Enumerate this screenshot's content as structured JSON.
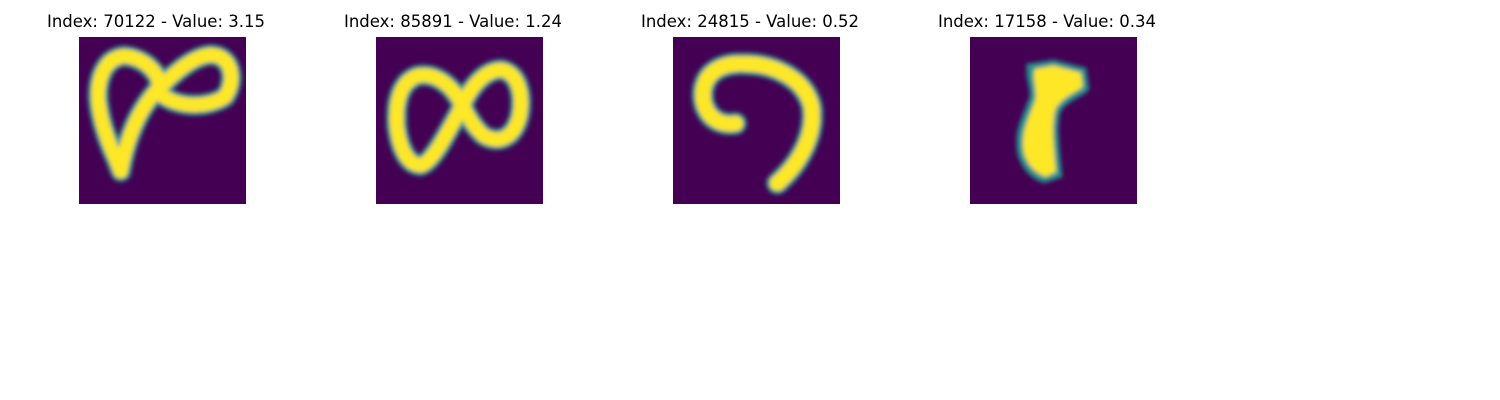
{
  "colors": {
    "background": "#440154",
    "edge": "#21918c",
    "mid": "#5ec962",
    "fill": "#fde725"
  },
  "panels": [
    {
      "title": "Index: 70122 - Value: 3.15",
      "index": "70122",
      "value": "3.15",
      "glyph": "glyph-8-loop-icon"
    },
    {
      "title": "Index: 85891 - Value: 1.24",
      "index": "85891",
      "value": "1.24",
      "glyph": "glyph-infinity-icon"
    },
    {
      "title": "Index: 24815 - Value: 0.52",
      "index": "24815",
      "value": "0.52",
      "glyph": "glyph-7-hook-icon"
    },
    {
      "title": "Index: 17158 - Value: 0.34",
      "index": "17158",
      "value": "0.34",
      "glyph": "glyph-1-bar-icon"
    }
  ]
}
